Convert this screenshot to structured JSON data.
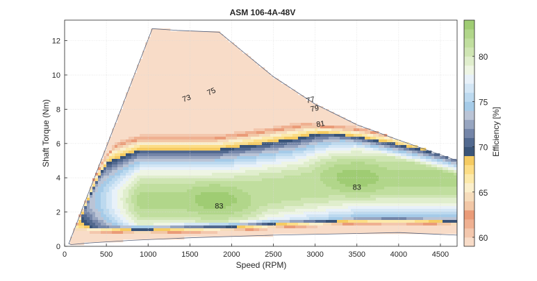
{
  "chart_data": {
    "type": "contourf",
    "title": "ASM 106-4A-48V",
    "xlabel": "Speed (RPM)",
    "ylabel": "Shaft Torque (Nm)",
    "xlim": [
      0,
      4700
    ],
    "ylim": [
      0,
      13.2
    ],
    "xticks": [
      0,
      500,
      1000,
      1500,
      2000,
      2500,
      3000,
      3500,
      4000,
      4500
    ],
    "yticks": [
      0,
      2,
      4,
      6,
      8,
      10,
      12
    ],
    "grid": true,
    "colorbar": {
      "label": "Efficiency [%]",
      "range": [
        59,
        84
      ],
      "ticks": [
        60,
        65,
        70,
        75,
        80
      ],
      "bands": [
        {
          "from": 59,
          "to": 60,
          "color": "#f8dcc8"
        },
        {
          "from": 60,
          "to": 61,
          "color": "#f3c7ad"
        },
        {
          "from": 61,
          "to": 62,
          "color": "#efb091"
        },
        {
          "from": 62,
          "to": 63,
          "color": "#ea9b78"
        },
        {
          "from": 63,
          "to": 64,
          "color": "#f2c7a6"
        },
        {
          "from": 64,
          "to": 65,
          "color": "#f6dcbb"
        },
        {
          "from": 65,
          "to": 66,
          "color": "#fbefcb"
        },
        {
          "from": 66,
          "to": 67,
          "color": "#fce9aa"
        },
        {
          "from": 67,
          "to": 68,
          "color": "#fcdd86"
        },
        {
          "from": 68,
          "to": 69,
          "color": "#f5cb62"
        },
        {
          "from": 69,
          "to": 70,
          "color": "#3a5478"
        },
        {
          "from": 70,
          "to": 71,
          "color": "#52698f"
        },
        {
          "from": 71,
          "to": 72,
          "color": "#7485a8"
        },
        {
          "from": 72,
          "to": 73,
          "color": "#97a5c0"
        },
        {
          "from": 73,
          "to": 74,
          "color": "#bac4d6"
        },
        {
          "from": 74,
          "to": 75,
          "color": "#a5cbe8"
        },
        {
          "from": 75,
          "to": 76,
          "color": "#bcd9ef"
        },
        {
          "from": 76,
          "to": 77,
          "color": "#d3e6f5"
        },
        {
          "from": 77,
          "to": 78,
          "color": "#e8f1f9"
        },
        {
          "from": 78,
          "to": 79,
          "color": "#eef5e4"
        },
        {
          "from": 79,
          "to": 80,
          "color": "#e0eecd"
        },
        {
          "from": 80,
          "to": 81,
          "color": "#cfe5b3"
        },
        {
          "from": 81,
          "to": 82,
          "color": "#c0de9e"
        },
        {
          "from": 82,
          "to": 83,
          "color": "#b1d68a"
        },
        {
          "from": 83,
          "to": 84,
          "color": "#9fcc73"
        }
      ]
    },
    "contour_labels": [
      {
        "text": "73",
        "speed": 1470,
        "torque": 8.5,
        "angle": -20
      },
      {
        "text": "75",
        "speed": 1770,
        "torque": 8.9,
        "angle": -25
      },
      {
        "text": "77",
        "speed": 2950,
        "torque": 8.4,
        "angle": -12
      },
      {
        "text": "79",
        "speed": 3000,
        "torque": 7.9,
        "angle": -12
      },
      {
        "text": "81",
        "speed": 3070,
        "torque": 7.0,
        "angle": -10
      },
      {
        "text": "83",
        "speed": 3500,
        "torque": 3.3,
        "angle": 0
      },
      {
        "text": "83",
        "speed": 1850,
        "torque": 2.2,
        "angle": 0
      }
    ],
    "envelope": [
      [
        50,
        0.15
      ],
      [
        1050,
        12.7
      ],
      [
        1350,
        12.6
      ],
      [
        1850,
        12.5
      ],
      [
        2100,
        11.5
      ],
      [
        2500,
        9.9
      ],
      [
        3000,
        8.3
      ],
      [
        3500,
        7.1
      ],
      [
        4000,
        6.2
      ],
      [
        4700,
        5.0
      ],
      [
        4700,
        0.65
      ],
      [
        4000,
        0.8
      ],
      [
        3500,
        0.75
      ],
      [
        2500,
        0.65
      ],
      [
        1500,
        0.5
      ],
      [
        800,
        0.35
      ],
      [
        300,
        0.2
      ],
      [
        80,
        0.1
      ]
    ],
    "efficiency_peaks": [
      {
        "speed": 3500,
        "torque": 4.0,
        "efficiency": 83.5
      },
      {
        "speed": 1800,
        "torque": 2.7,
        "efficiency": 83.5
      }
    ]
  }
}
